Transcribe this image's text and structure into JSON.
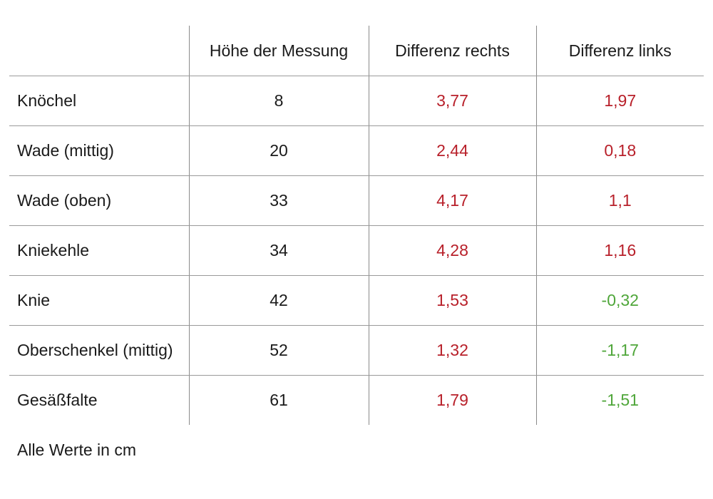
{
  "table": {
    "headers": [
      "",
      "Höhe der Messung",
      "Differenz rechts",
      "Differenz links"
    ],
    "rows": [
      {
        "label": "Knöchel",
        "hoehe": "8",
        "rechts": "3,77",
        "links": "1,97"
      },
      {
        "label": "Wade (mittig)",
        "hoehe": "20",
        "rechts": "2,44",
        "links": "0,18"
      },
      {
        "label": "Wade (oben)",
        "hoehe": "33",
        "rechts": "4,17",
        "links": "1,1"
      },
      {
        "label": "Kniekehle",
        "hoehe": "34",
        "rechts": "4,28",
        "links": "1,16"
      },
      {
        "label": "Knie",
        "hoehe": "42",
        "rechts": "1,53",
        "links": "-0,32"
      },
      {
        "label": "Oberschenkel (mittig)",
        "hoehe": "52",
        "rechts": "1,32",
        "links": "-1,17"
      },
      {
        "label": "Gesäßfalte",
        "hoehe": "61",
        "rechts": "1,79",
        "links": "-1,51"
      }
    ]
  },
  "footnote": "Alle Werte in cm",
  "colors": {
    "positive": "#b8202a",
    "negative": "#4fa63a",
    "text": "#1a1a1a"
  }
}
